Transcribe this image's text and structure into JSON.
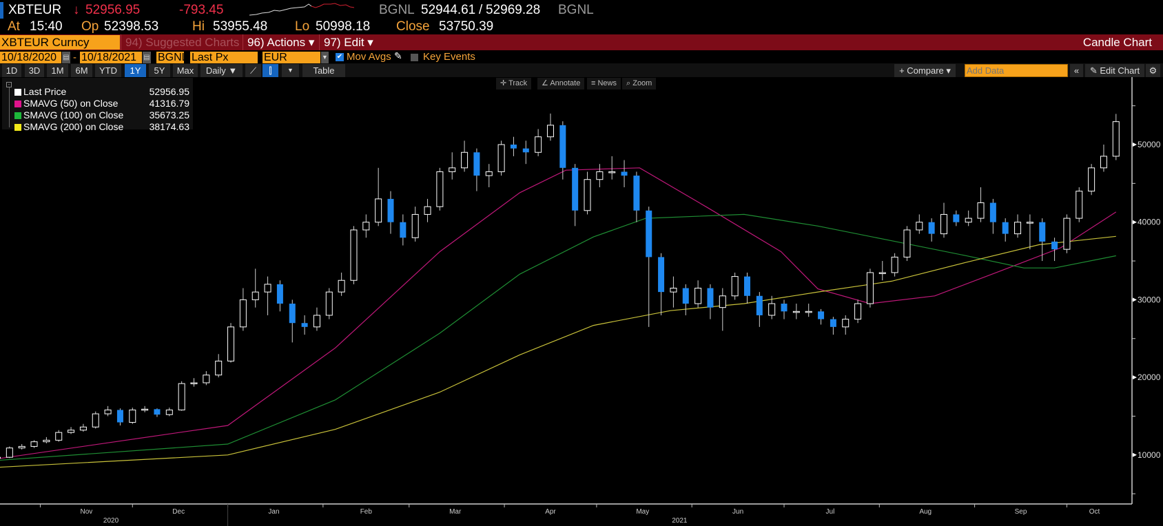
{
  "quote": {
    "ticker": "XBTEUR",
    "arrow": "↓",
    "last": "52956.95",
    "change": "-793.45",
    "source1": "BGNL",
    "bid": "52944.61",
    "sep": "/",
    "ask": "52969.28",
    "source2": "BGNL",
    "at_label": "At",
    "at": "15:40",
    "op_label": "Op",
    "open": "52398.53",
    "hi_label": "Hi",
    "high": "53955.48",
    "lo_label": "Lo",
    "low": "50998.18",
    "close_label": "Close",
    "close": "53750.39"
  },
  "menubar": {
    "security": "XBTEUR Curncy",
    "suggested": "94) Suggested Charts",
    "actions": "96) Actions ▾",
    "edit": "97) Edit ▾",
    "title": "Candle Chart"
  },
  "params": {
    "start_date": "10/18/2020",
    "dash": "-",
    "end_date": "10/18/2021",
    "source": "BGNL",
    "field": "Last Px",
    "currency": "EUR",
    "mov_avgs": "Mov Avgs",
    "key_events": "Key Events"
  },
  "toolbar": {
    "periods": [
      "1D",
      "3D",
      "1M",
      "6M",
      "YTD",
      "1Y",
      "5Y",
      "Max"
    ],
    "active": "1Y",
    "frequency": "Daily ▼",
    "table": "Table",
    "compare": "+ Compare ▾",
    "add_data_placeholder": "Add Data",
    "collapse": "«",
    "edit_chart": "Edit Chart",
    "settings": "⚙"
  },
  "float_tools": [
    "Track",
    "Annotate",
    "News",
    "Zoom"
  ],
  "legend": [
    {
      "label": "Last Price",
      "value": "52956.95",
      "color": "#ffffff"
    },
    {
      "label": "SMAVG (50)  on Close",
      "value": "41316.79",
      "color": "#e0138c"
    },
    {
      "label": "SMAVG (100)  on Close",
      "value": "35673.25",
      "color": "#1db83a"
    },
    {
      "label": "SMAVG (200)  on Close",
      "value": "38174.63",
      "color": "#f2ea1a"
    }
  ],
  "colors": {
    "down": "#1e88f0",
    "up": "#ffffff",
    "sma50": "#c0187a",
    "sma100": "#1f8f34",
    "sma200": "#c9c23a"
  },
  "chart_data": {
    "type": "candlestick",
    "title": "Candle Chart",
    "start_date": "2020-10-18",
    "interval_days": 4,
    "ylim": [
      5000,
      55000
    ],
    "y_ticks": [
      10000,
      20000,
      30000,
      40000,
      50000
    ],
    "y_tick_labels": [
      "10000",
      "20000",
      "30000",
      "40000",
      "50000"
    ],
    "x_tick_labels": [
      {
        "label": "Nov",
        "day": 29
      },
      {
        "label": "Dec",
        "day": 59
      },
      {
        "label": "Jan",
        "day": 90
      },
      {
        "label": "Feb",
        "day": 120
      },
      {
        "label": "Mar",
        "day": 149
      },
      {
        "label": "Apr",
        "day": 180
      },
      {
        "label": "May",
        "day": 210
      },
      {
        "label": "Jun",
        "day": 241
      },
      {
        "label": "Jul",
        "day": 271
      },
      {
        "label": "Aug",
        "day": 302
      },
      {
        "label": "Sep",
        "day": 333
      },
      {
        "label": "Oct",
        "day": 357
      }
    ],
    "month_start_days": [
      14,
      44,
      75,
      106,
      134,
      165,
      195,
      226,
      256,
      287,
      318,
      348
    ],
    "year_labels": [
      {
        "label": "2020",
        "day": 37
      },
      {
        "label": "2021",
        "day": 222
      }
    ],
    "year_boundary_day": 75,
    "open": [
      9600,
      9700,
      10900,
      11100,
      11700,
      11900,
      12900,
      13200,
      13600,
      15300,
      15800,
      14200,
      15800,
      15900,
      15200,
      15800,
      19200,
      19300,
      20300,
      22100,
      26500,
      30000,
      31000,
      32000,
      29500,
      27000,
      26500,
      28000,
      31000,
      32500,
      39000,
      40000,
      43000,
      40000,
      38000,
      41000,
      42000,
      46500,
      47000,
      49000,
      46000,
      46500,
      50000,
      49500,
      49000,
      51000,
      52500,
      47000,
      41500,
      45500,
      46500,
      46500,
      46000,
      41500,
      35500,
      31000,
      31500,
      29500,
      31500,
      29000,
      30500,
      33000,
      30500,
      28000,
      29500,
      28500,
      28500,
      28500,
      27500,
      26500,
      27500,
      29500,
      33500,
      33500,
      35500,
      39000,
      40000,
      38500,
      41000,
      40000,
      40500,
      42500,
      40000,
      38500,
      40000,
      40000,
      37500,
      36500,
      40500,
      44000,
      47000,
      48500
    ],
    "high": [
      9900,
      11100,
      11400,
      11900,
      12300,
      13200,
      13600,
      14000,
      15600,
      16300,
      16000,
      16100,
      16300,
      16000,
      16100,
      19500,
      19900,
      20800,
      23000,
      27000,
      31500,
      34000,
      33000,
      32500,
      30000,
      28000,
      29000,
      31500,
      33500,
      39500,
      41000,
      47000,
      44000,
      41000,
      42000,
      43000,
      47000,
      49000,
      50500,
      49500,
      47500,
      50500,
      51000,
      50500,
      52000,
      54000,
      53000,
      47500,
      46500,
      47500,
      48500,
      48000,
      46500,
      42000,
      36000,
      33000,
      32000,
      32500,
      32000,
      31500,
      33500,
      33500,
      31000,
      30500,
      30000,
      29500,
      29500,
      28800,
      27800,
      28000,
      30000,
      34000,
      35000,
      36000,
      39500,
      41000,
      40500,
      42500,
      41500,
      41500,
      44500,
      43000,
      40500,
      41000,
      41000,
      40500,
      38000,
      41000,
      44500,
      47500,
      50000,
      53955
    ],
    "low": [
      9500,
      9600,
      10700,
      10900,
      11500,
      11700,
      12700,
      13000,
      13400,
      15000,
      13800,
      14000,
      15500,
      14900,
      15000,
      15700,
      18800,
      19000,
      20000,
      21900,
      26000,
      29000,
      28000,
      28500,
      24500,
      25500,
      26000,
      27500,
      30500,
      32000,
      38000,
      39500,
      38500,
      37000,
      37500,
      40000,
      41500,
      45500,
      46500,
      44000,
      44500,
      46000,
      48500,
      47500,
      48500,
      50500,
      45500,
      39500,
      41000,
      44500,
      45500,
      44500,
      40000,
      26500,
      28000,
      29000,
      28000,
      29000,
      27500,
      26000,
      30000,
      29500,
      26500,
      27500,
      27500,
      27500,
      27800,
      26800,
      25500,
      25500,
      27000,
      29000,
      32500,
      33000,
      35000,
      38500,
      37500,
      38000,
      39500,
      39500,
      40000,
      38500,
      37500,
      38000,
      36500,
      35000,
      35000,
      36000,
      40000,
      43500,
      46500,
      48000
    ],
    "close": [
      9700,
      10900,
      11100,
      11700,
      11900,
      12900,
      13200,
      13600,
      15300,
      15800,
      14200,
      15800,
      15900,
      15200,
      15800,
      19200,
      19300,
      20300,
      22100,
      26500,
      30000,
      31000,
      32000,
      29500,
      27000,
      26500,
      28000,
      31000,
      32500,
      39000,
      40000,
      43000,
      40000,
      38000,
      41000,
      42000,
      46500,
      47000,
      49000,
      46000,
      46500,
      50000,
      49500,
      49000,
      51000,
      52500,
      47000,
      41500,
      45500,
      46500,
      46500,
      46000,
      41500,
      35500,
      31000,
      31500,
      29500,
      31500,
      29000,
      30500,
      33000,
      30500,
      28000,
      29500,
      28500,
      28500,
      28500,
      27500,
      26500,
      27500,
      29500,
      33500,
      33500,
      35500,
      39000,
      40000,
      38500,
      41000,
      40000,
      40500,
      42500,
      40000,
      38500,
      40000,
      40000,
      37500,
      36500,
      40500,
      44000,
      47000,
      48500,
      52957
    ],
    "series": [
      {
        "name": "SMAVG (50) on Close",
        "days": [
          0,
          75,
          110,
          144,
          170,
          185,
          209,
          231,
          255,
          267,
          284,
          305,
          327,
          346,
          364
        ],
        "values": [
          9500,
          13800,
          23800,
          36200,
          43800,
          46700,
          47000,
          41900,
          36200,
          31400,
          29500,
          30500,
          33800,
          36700,
          41317
        ]
      },
      {
        "name": "SMAVG (100) on Close",
        "days": [
          0,
          75,
          110,
          144,
          170,
          194,
          211,
          243,
          267,
          291,
          315,
          334,
          344,
          364
        ],
        "values": [
          9300,
          11400,
          17100,
          25700,
          33300,
          38100,
          40500,
          41000,
          39500,
          37600,
          35700,
          34100,
          34100,
          35673
        ]
      },
      {
        "name": "SMAVG (200) on Close",
        "days": [
          0,
          75,
          110,
          144,
          170,
          194,
          219,
          243,
          267,
          291,
          315,
          339,
          364
        ],
        "values": [
          8400,
          10000,
          13300,
          18100,
          22900,
          26700,
          28600,
          29500,
          31000,
          32400,
          34800,
          37100,
          38175
        ]
      }
    ]
  }
}
